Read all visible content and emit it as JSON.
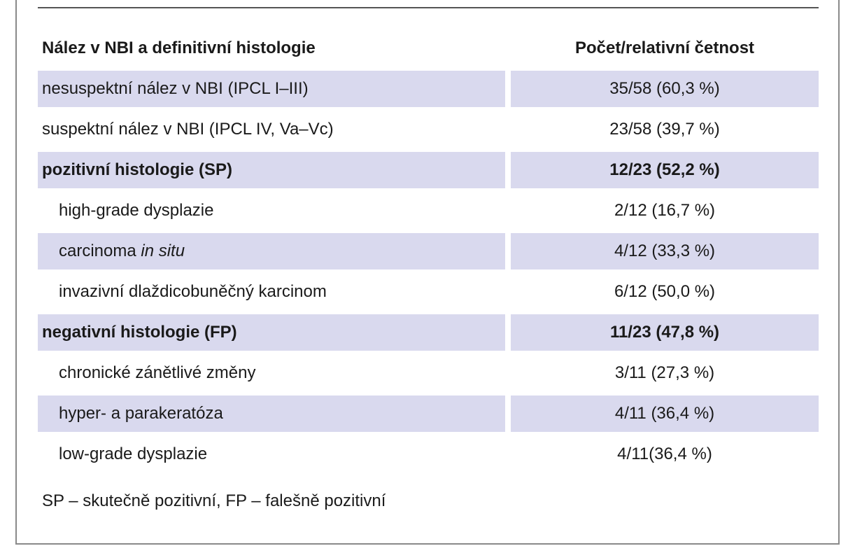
{
  "header": {
    "col1": "Nález v NBI a definitivní histologie",
    "col2": "Počet/relativní četnost"
  },
  "rows": [
    {
      "label": "nesuspektní nález v NBI (IPCL I–III)",
      "value": "35/58 (60,3 %)"
    },
    {
      "label": "suspektní nález v NBI (IPCL IV, Va–Vc)",
      "value": "23/58 (39,7 %)"
    },
    {
      "label": "pozitivní histologie (SP)",
      "value": "12/23 (52,2 %)"
    },
    {
      "label": "high-grade dysplazie",
      "value": "2/12 (16,7 %)"
    },
    {
      "label_prefix": "carcinoma ",
      "label_italic": "in situ",
      "value": "4/12 (33,3 %)"
    },
    {
      "label": "invazivní dlaždicobuněčný karcinom",
      "value": "6/12 (50,0 %)"
    },
    {
      "label": "negativní histologie (FP)",
      "value": "11/23 (47,8 %)"
    },
    {
      "label": "chronické zánětlivé změny",
      "value": "3/11 (27,3 %)"
    },
    {
      "label": "hyper- a parakeratóza",
      "value": "4/11 (36,4 %)"
    },
    {
      "label": "low-grade dysplazie",
      "value": "4/11(36,4 %)"
    }
  ],
  "footnote": "SP – skutečně pozitivní, FP – falešně pozitivní",
  "colors": {
    "row_shade": "#d9d9ee",
    "border": "#8a8a8a"
  }
}
